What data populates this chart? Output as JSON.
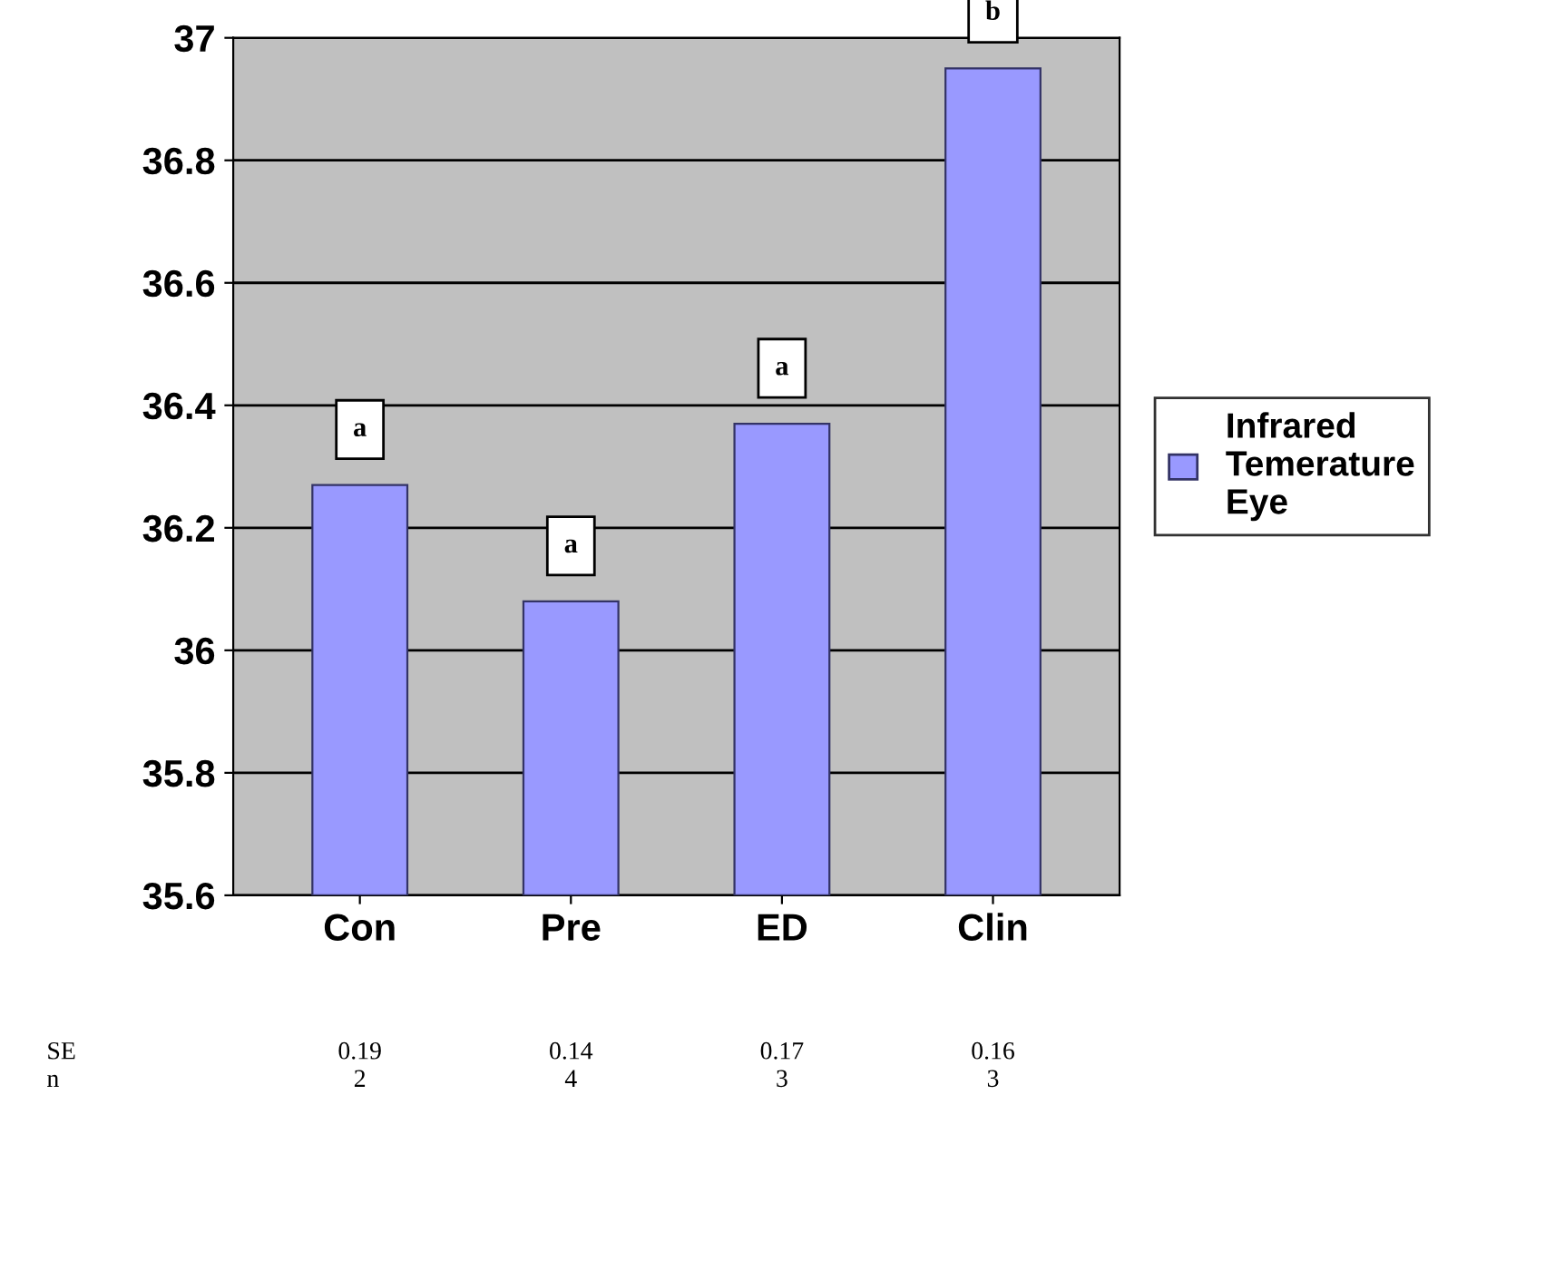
{
  "chart_data": {
    "type": "bar",
    "categories": [
      "Con",
      "Pre",
      "ED",
      "Clin"
    ],
    "series": [
      {
        "name": "Infrared Temerature Eye",
        "color": "#9999ff",
        "values": [
          36.27,
          36.08,
          36.37,
          36.95
        ]
      }
    ],
    "ylim": [
      35.6,
      37
    ],
    "yticks": [
      35.6,
      35.8,
      36,
      36.2,
      36.4,
      36.6,
      36.8,
      37
    ],
    "grid": "y",
    "legend": "right",
    "annotations": [
      {
        "text": "a",
        "x": "Con",
        "y": 36.27
      },
      {
        "text": "a",
        "x": "Pre",
        "y": 36.08
      },
      {
        "text": "a",
        "x": "ED",
        "y": 36.37
      },
      {
        "text": "b",
        "x": "Clin",
        "y": 36.95
      },
      "SE",
      "0.19",
      "0.14",
      "0.17",
      "0.16",
      "n",
      "2",
      "4",
      "3",
      "3"
    ]
  }
}
